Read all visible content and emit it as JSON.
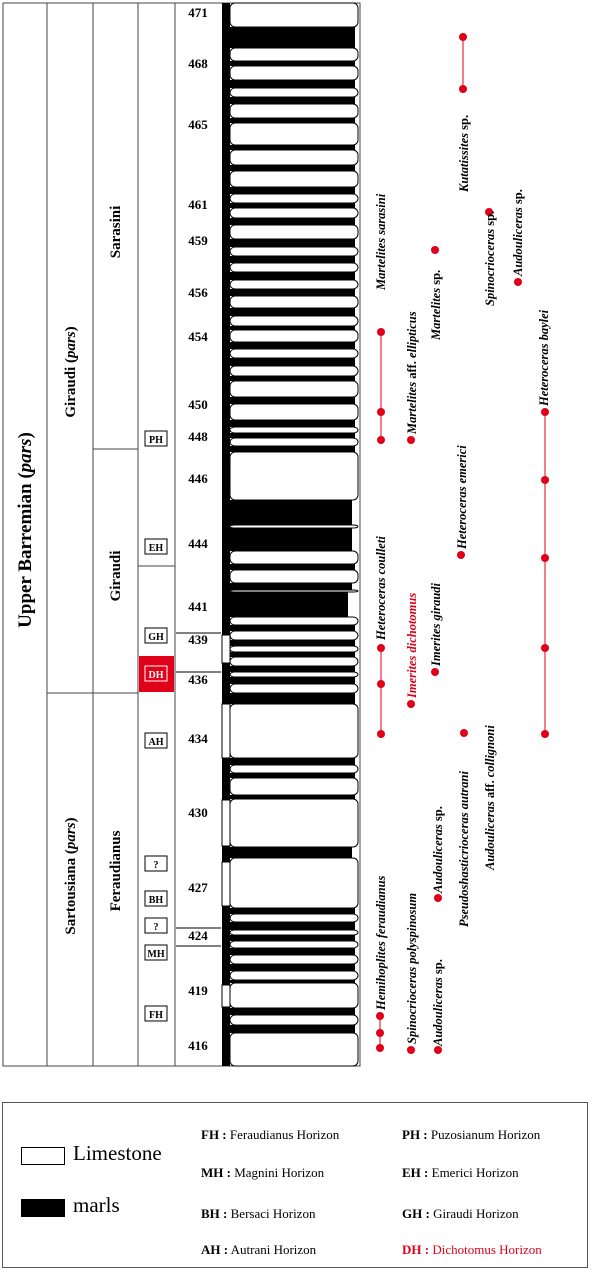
{
  "stage": {
    "text": "Upper Barremian (",
    "italic": "pars",
    "end": ")"
  },
  "zones": [
    {
      "text": "Giraudi (",
      "italic": "pars",
      "end": ")"
    },
    {
      "text": "Sartousiana (",
      "italic": "pars",
      "end": ")"
    }
  ],
  "subzones": [
    "Sarasini",
    "Giraudi",
    "Feraudianus"
  ],
  "horizon_boxes": [
    {
      "label": "PH",
      "highlight": false
    },
    {
      "label": "EH",
      "highlight": false
    },
    {
      "label": "GH",
      "highlight": false
    },
    {
      "label": "DH",
      "highlight": true
    },
    {
      "label": "AH",
      "highlight": false
    },
    {
      "label": "?",
      "highlight": false
    },
    {
      "label": "BH",
      "highlight": false
    },
    {
      "label": "?",
      "highlight": false
    },
    {
      "label": "MH",
      "highlight": false
    },
    {
      "label": "FH",
      "highlight": false
    }
  ],
  "bed_numbers": [
    "471",
    "468",
    "465",
    "461",
    "459",
    "456",
    "454",
    "450",
    "448",
    "446",
    "444",
    "441",
    "439",
    "436",
    "434",
    "430",
    "427",
    "424",
    "419",
    "416"
  ],
  "taxa": [
    {
      "italic": "Hemihoplites feraudianus",
      "plain": "",
      "red": false
    },
    {
      "italic": "Spinocrioceras polyspinosum",
      "plain": "",
      "red": false
    },
    {
      "italic": "Audouliceras",
      "plain": " sp.",
      "red": false
    },
    {
      "italic": "Audouliceras",
      "plain": " sp.",
      "red": false
    },
    {
      "italic": "Pseudoshasticrioceras autrani",
      "plain": "",
      "red": false
    },
    {
      "italic": "Audouliceras",
      "plain": " aff. ",
      "italic2": "collignoni",
      "red": false
    },
    {
      "italic": "Heteroceras coulleti",
      "plain": "",
      "red": false
    },
    {
      "italic": "Imerites dichotomus",
      "plain": "",
      "red": true
    },
    {
      "italic": "Imerites giraudi",
      "plain": "",
      "red": false
    },
    {
      "italic": "Heteroceras emerici",
      "plain": "",
      "red": false
    },
    {
      "italic": "Heteroceras baylei",
      "plain": "",
      "red": false
    },
    {
      "italic": "Martelites sarasini",
      "plain": "",
      "red": false
    },
    {
      "italic": "Martelites",
      "plain": " aff. ",
      "italic2": "ellipticus",
      "red": false
    },
    {
      "italic": "Martelites",
      "plain": " sp.",
      "red": false
    },
    {
      "italic": "Spinocrioceras",
      "plain": " sp.",
      "red": false
    },
    {
      "italic": "Audouliceras",
      "plain": " sp.",
      "red": false
    },
    {
      "italic": "Kutatissites",
      "plain": " sp.",
      "red": false
    }
  ],
  "legend": {
    "limestone": "Limestone",
    "marls": "marls",
    "horizons": [
      {
        "code": "FH :",
        "name": " Feraudianus Horizon",
        "red": false
      },
      {
        "code": "MH :",
        "name": " Magnini Horizon",
        "red": false
      },
      {
        "code": "BH :",
        "name": "  Bersaci Horizon",
        "red": false
      },
      {
        "code": "AH :",
        "name": " Autrani Horizon",
        "red": false
      },
      {
        "code": "PH :",
        "name": " Puzosianum Horizon",
        "red": false
      },
      {
        "code": "EH :",
        "name": " Emerici Horizon",
        "red": false
      },
      {
        "code": "GH :",
        "name": " Giraudi Horizon",
        "red": false
      },
      {
        "code": "DH :",
        "name": " Dichotomus Horizon",
        "red": true
      }
    ]
  }
}
